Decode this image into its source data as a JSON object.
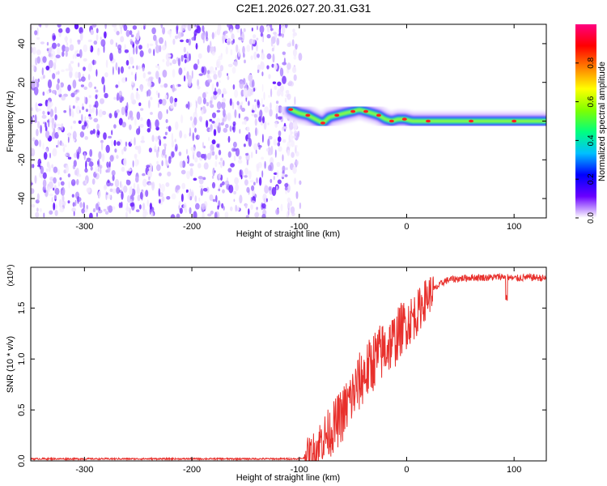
{
  "figure": {
    "title": "C2E1.2026.027.20.31.G31"
  },
  "chart_data": [
    {
      "type": "heatmap",
      "xlabel": "Height of straight line (km)",
      "ylabel": "Frequency (Hz)",
      "xlim": [
        -350,
        130
      ],
      "ylim": [
        -50,
        50
      ],
      "xticks": [
        -300,
        -200,
        -100,
        0,
        100
      ],
      "xtick_labels": [
        "-300",
        "-200",
        "-100",
        "0",
        "100"
      ],
      "yticks": [
        -40,
        -20,
        0,
        20,
        40
      ],
      "ytick_labels": [
        "-40",
        "-20",
        "0",
        "20",
        "40"
      ],
      "noise_region_x": [
        -350,
        -105
      ],
      "signal_track": {
        "x": [
          -108,
          -100,
          -92,
          -85,
          -78,
          -72,
          -65,
          -58,
          -50,
          -44,
          -38,
          -32,
          -26,
          -20,
          -14,
          -8,
          -2,
          5,
          20,
          40,
          60,
          80,
          100,
          130
        ],
        "y": [
          6,
          4,
          3,
          1,
          -1,
          2,
          3,
          4,
          5,
          6,
          5,
          4,
          3,
          1,
          0,
          1,
          1,
          0,
          0,
          0,
          0,
          0,
          0,
          0
        ]
      },
      "colorbar": {
        "label": "Normalized spectral amplitude",
        "range": [
          0,
          1
        ],
        "ticks": [
          0.0,
          0.2,
          0.4,
          0.6,
          0.8
        ],
        "tick_labels": [
          "0.0",
          "0.2",
          "0.4",
          "0.6",
          "0.8"
        ],
        "colors": [
          "#ffffff",
          "#6a00ff",
          "#0000ff",
          "#00bfff",
          "#00ff7f",
          "#7fff00",
          "#ffff00",
          "#ff7f00",
          "#ff0000",
          "#ff0080"
        ]
      },
      "grid": false
    },
    {
      "type": "line",
      "xlabel": "Height of straight line (km)",
      "ylabel": "SNR (10 * v/v)",
      "y_multiplier_label": "(x10⁴)",
      "xlim": [
        -350,
        130
      ],
      "ylim": [
        0,
        1.9
      ],
      "xticks": [
        -300,
        -200,
        -100,
        0,
        100
      ],
      "xtick_labels": [
        "-300",
        "-200",
        "-100",
        "0",
        "100"
      ],
      "yticks": [
        0.0,
        0.5,
        1.0,
        1.5
      ],
      "ytick_labels": [
        "0.0",
        "0.5",
        "1.0",
        "1.5"
      ],
      "series": [
        {
          "color": "#e8302c",
          "x": [
            -350,
            -300,
            -250,
            -200,
            -150,
            -110,
            -100,
            -95,
            -90,
            -85,
            -80,
            -75,
            -70,
            -65,
            -60,
            -55,
            -50,
            -45,
            -40,
            -35,
            -30,
            -25,
            -20,
            -15,
            -10,
            -5,
            0,
            5,
            10,
            15,
            20,
            25,
            30,
            35,
            40,
            50,
            60,
            70,
            80,
            90,
            95,
            100,
            110,
            120,
            130
          ],
          "y": [
            0.02,
            0.02,
            0.02,
            0.02,
            0.02,
            0.02,
            0.02,
            0.03,
            0.05,
            0.1,
            0.2,
            0.25,
            0.3,
            0.38,
            0.45,
            0.55,
            0.65,
            0.75,
            0.85,
            0.9,
            1.0,
            1.05,
            1.1,
            1.15,
            1.2,
            1.3,
            1.35,
            1.4,
            1.45,
            1.55,
            1.62,
            1.68,
            1.72,
            1.76,
            1.78,
            1.79,
            1.8,
            1.8,
            1.8,
            1.81,
            1.8,
            1.79,
            1.8,
            1.8,
            1.79
          ]
        }
      ],
      "grid": false
    }
  ]
}
